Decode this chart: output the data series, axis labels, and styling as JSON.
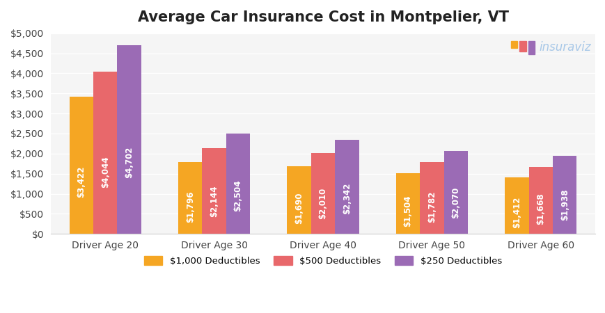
{
  "title": "Average Car Insurance Cost in Montpelier, VT",
  "categories": [
    "Driver Age 20",
    "Driver Age 30",
    "Driver Age 40",
    "Driver Age 50",
    "Driver Age 60"
  ],
  "series": [
    {
      "label": "$1,000 Deductibles",
      "color": "#F5A623",
      "values": [
        3422,
        1796,
        1690,
        1504,
        1412
      ]
    },
    {
      "label": "$500 Deductibles",
      "color": "#E8686B",
      "values": [
        4044,
        2144,
        2010,
        1782,
        1668
      ]
    },
    {
      "label": "$250 Deductibles",
      "color": "#9B6BB5",
      "values": [
        4702,
        2504,
        2342,
        2070,
        1938
      ]
    }
  ],
  "ylim": [
    0,
    5000
  ],
  "yticks": [
    0,
    500,
    1000,
    1500,
    2000,
    2500,
    3000,
    3500,
    4000,
    4500,
    5000
  ],
  "background_color": "#FFFFFF",
  "plot_bg_color": "#F5F5F5",
  "grid_color": "#FFFFFF",
  "bar_width": 0.22,
  "label_color": "#FFFFFF",
  "label_fontsize": 8.5,
  "title_fontsize": 15,
  "tick_fontsize": 10,
  "legend_fontsize": 9.5,
  "watermark_text": "insuraviz",
  "watermark_color_main": "#A8C8E8",
  "watermark_color_icon_orange": "#F5A623",
  "watermark_color_icon_red": "#E8686B",
  "watermark_color_icon_purple": "#9B6BB5"
}
